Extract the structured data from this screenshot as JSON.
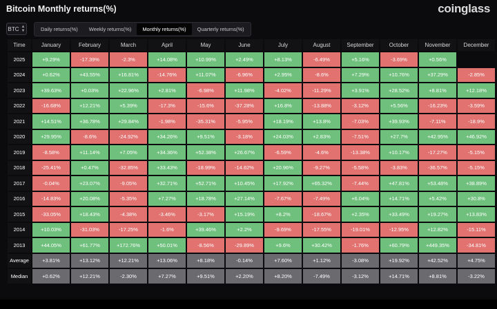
{
  "header": {
    "title": "Bitcoin Monthly returns(%)",
    "brand": "coinglass"
  },
  "toolbar": {
    "coin": "BTC",
    "tabs": [
      "Daily returns(%)",
      "Weekly returns(%)",
      "Monthly returns(%)",
      "Quarterly returns(%)"
    ],
    "active_tab": 2
  },
  "colors": {
    "positive": "#6ec07c",
    "negative": "#e27270",
    "stat": "#6b6b6f"
  },
  "table": {
    "corner_label": "Time",
    "months": [
      "January",
      "February",
      "March",
      "April",
      "May",
      "June",
      "July",
      "August",
      "September",
      "October",
      "November",
      "December"
    ],
    "rows": [
      {
        "year": "2025",
        "values": [
          "+9.29%",
          "-17.39%",
          "-2.3%",
          "+14.08%",
          "+10.99%",
          "+2.49%",
          "+8.13%",
          "-6.49%",
          "+5.16%",
          "-3.69%",
          "+0.56%",
          ""
        ]
      },
      {
        "year": "2024",
        "values": [
          "+0.62%",
          "+43.55%",
          "+16.81%",
          "-14.76%",
          "+11.07%",
          "-6.96%",
          "+2.95%",
          "-8.6%",
          "+7.29%",
          "+10.76%",
          "+37.29%",
          "-2.85%"
        ]
      },
      {
        "year": "2023",
        "values": [
          "+39.63%",
          "+0.03%",
          "+22.96%",
          "+2.81%",
          "-6.98%",
          "+11.98%",
          "-4.02%",
          "-11.29%",
          "+3.91%",
          "+28.52%",
          "+8.81%",
          "+12.18%"
        ]
      },
      {
        "year": "2022",
        "values": [
          "-16.68%",
          "+12.21%",
          "+5.39%",
          "-17.3%",
          "-15.6%",
          "-37.28%",
          "+16.8%",
          "-13.88%",
          "-3.12%",
          "+5.56%",
          "-16.23%",
          "-3.59%"
        ]
      },
      {
        "year": "2021",
        "values": [
          "+14.51%",
          "+36.78%",
          "+29.84%",
          "-1.98%",
          "-35.31%",
          "-5.95%",
          "+18.19%",
          "+13.8%",
          "-7.03%",
          "+39.93%",
          "-7.11%",
          "-18.9%"
        ]
      },
      {
        "year": "2020",
        "values": [
          "+29.95%",
          "-8.6%",
          "-24.92%",
          "+34.26%",
          "+9.51%",
          "-3.18%",
          "+24.03%",
          "+2.83%",
          "-7.51%",
          "+27.7%",
          "+42.95%",
          "+46.92%"
        ]
      },
      {
        "year": "2019",
        "values": [
          "-8.58%",
          "+11.14%",
          "+7.05%",
          "+34.36%",
          "+52.38%",
          "+26.67%",
          "-6.59%",
          "-4.6%",
          "-13.38%",
          "+10.17%",
          "-17.27%",
          "-5.15%"
        ]
      },
      {
        "year": "2018",
        "values": [
          "-25.41%",
          "+0.47%",
          "-32.85%",
          "+33.43%",
          "-18.99%",
          "-14.62%",
          "+20.96%",
          "-9.27%",
          "-5.58%",
          "-3.83%",
          "-36.57%",
          "-5.15%"
        ]
      },
      {
        "year": "2017",
        "values": [
          "-0.04%",
          "+23.07%",
          "-9.05%",
          "+32.71%",
          "+52.71%",
          "+10.45%",
          "+17.92%",
          "+65.32%",
          "-7.44%",
          "+47.81%",
          "+53.48%",
          "+38.89%"
        ]
      },
      {
        "year": "2016",
        "values": [
          "-14.83%",
          "+20.08%",
          "-5.35%",
          "+7.27%",
          "+18.78%",
          "+27.14%",
          "-7.67%",
          "-7.49%",
          "+6.04%",
          "+14.71%",
          "+5.42%",
          "+30.8%"
        ]
      },
      {
        "year": "2015",
        "values": [
          "-33.05%",
          "+18.43%",
          "-4.38%",
          "-3.46%",
          "-3.17%",
          "+15.19%",
          "+8.2%",
          "-18.67%",
          "+2.35%",
          "+33.49%",
          "+19.27%",
          "+13.83%"
        ]
      },
      {
        "year": "2014",
        "values": [
          "+10.03%",
          "-31.03%",
          "-17.25%",
          "-1.6%",
          "+39.46%",
          "+2.2%",
          "-9.69%",
          "-17.55%",
          "-19.01%",
          "-12.95%",
          "+12.82%",
          "-15.11%"
        ]
      },
      {
        "year": "2013",
        "values": [
          "+44.05%",
          "+61.77%",
          "+172.76%",
          "+50.01%",
          "-8.56%",
          "-29.89%",
          "+9.6%",
          "+30.42%",
          "-1.76%",
          "+60.79%",
          "+449.35%",
          "-34.81%"
        ]
      }
    ],
    "stats": [
      {
        "label": "Average",
        "values": [
          "+3.81%",
          "+13.12%",
          "+12.21%",
          "+13.06%",
          "+8.18%",
          "-0.14%",
          "+7.60%",
          "+1.12%",
          "-3.08%",
          "+19.92%",
          "+42.52%",
          "+4.75%"
        ]
      },
      {
        "label": "Median",
        "values": [
          "+0.62%",
          "+12.21%",
          "-2.30%",
          "+7.27%",
          "+9.51%",
          "+2.20%",
          "+8.20%",
          "-7.49%",
          "-3.12%",
          "+14.71%",
          "+8.81%",
          "-3.22%"
        ]
      }
    ]
  }
}
